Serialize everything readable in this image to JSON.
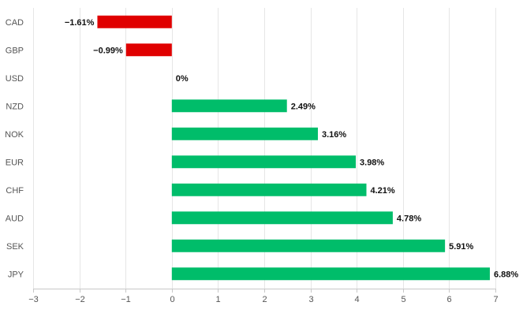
{
  "chart_data": {
    "type": "bar",
    "orientation": "horizontal",
    "categories": [
      "CAD",
      "GBP",
      "USD",
      "NZD",
      "NOK",
      "EUR",
      "CHF",
      "AUD",
      "SEK",
      "JPY"
    ],
    "values": [
      -1.61,
      -0.99,
      0,
      2.49,
      3.16,
      3.98,
      4.21,
      4.78,
      5.91,
      6.88
    ],
    "value_labels": [
      "−1.61%",
      "−0.99%",
      "0%",
      "2.49%",
      "3.16%",
      "3.98%",
      "4.21%",
      "4.78%",
      "5.91%",
      "6.88%"
    ],
    "x_ticks": [
      -3,
      -2,
      -1,
      0,
      1,
      2,
      3,
      4,
      5,
      6,
      7
    ],
    "x_tick_labels": [
      "−3",
      "−2",
      "−1",
      "0",
      "1",
      "2",
      "3",
      "4",
      "5",
      "6",
      "7"
    ],
    "xlim": [
      -3,
      7
    ],
    "title": "",
    "xlabel": "",
    "ylabel": "",
    "grid": true,
    "colors": {
      "positive": "#00bd6a",
      "negative": "#e00000"
    }
  }
}
